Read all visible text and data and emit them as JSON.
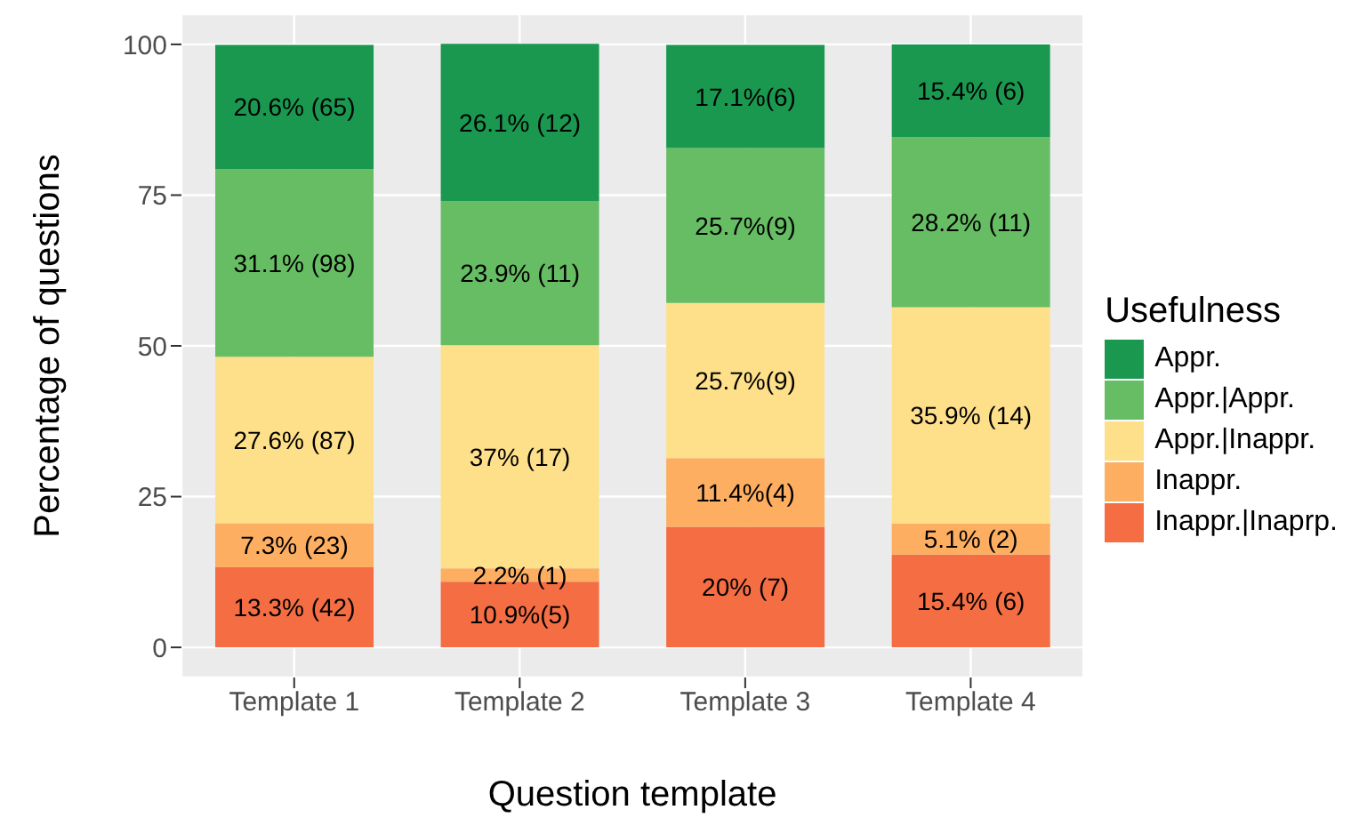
{
  "chart_data": {
    "type": "bar",
    "stacked": true,
    "xlabel": "Question template",
    "ylabel": "Percentage of questions",
    "legend_title": "Usefulness",
    "categories": [
      "Template 1",
      "Template 2",
      "Template 3",
      "Template 4"
    ],
    "series": [
      {
        "name": "Inappr.|Inaprp.",
        "color": "#f46d43",
        "values": [
          13.3,
          10.9,
          20,
          15.4
        ],
        "value_labels": [
          "13.3% (42)",
          "10.9%(5)",
          "20% (7)",
          "15.4% (6)"
        ]
      },
      {
        "name": "Inappr.",
        "color": "#fdae61",
        "values": [
          7.3,
          2.2,
          11.4,
          5.1
        ],
        "value_labels": [
          "7.3% (23)",
          "2.2% (1)",
          "11.4%(4)",
          "5.1% (2)"
        ]
      },
      {
        "name": "Appr.|Inappr.",
        "color": "#fee08b",
        "values": [
          27.6,
          37,
          25.7,
          35.9
        ],
        "value_labels": [
          "27.6% (87)",
          "37% (17)",
          "25.7%(9)",
          "35.9% (14)"
        ]
      },
      {
        "name": "Appr.|Appr.",
        "color": "#66bd63",
        "values": [
          31.1,
          23.9,
          25.7,
          28.2
        ],
        "value_labels": [
          "31.1% (98)",
          "23.9% (11)",
          "25.7%(9)",
          "28.2% (11)"
        ]
      },
      {
        "name": "Appr.",
        "color": "#1a9850",
        "values": [
          20.6,
          26.1,
          17.1,
          15.4
        ],
        "value_labels": [
          "20.6% (65)",
          "26.1% (12)",
          "17.1%(6)",
          "15.4% (6)"
        ]
      }
    ],
    "ylim": [
      -5,
      105
    ],
    "yticks": [
      0,
      25,
      50,
      75,
      100
    ],
    "grid": true,
    "legend": "right"
  }
}
